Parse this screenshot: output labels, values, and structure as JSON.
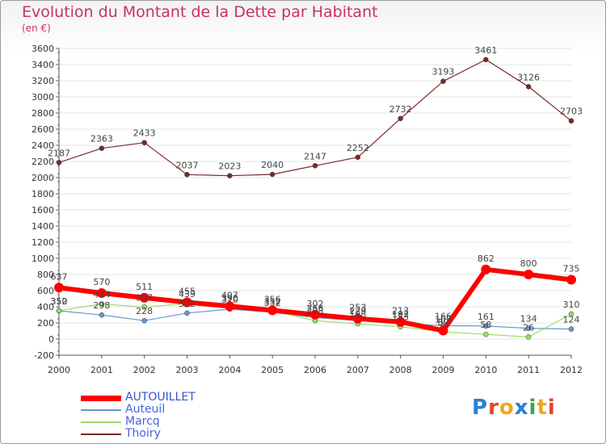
{
  "title": "Evolution du Montant de la Dette par Habitant",
  "subtitle": "(en €)",
  "logo_text": "Proxiti",
  "chart_data": {
    "type": "line",
    "title": "Evolution du Montant de la Dette par Habitant",
    "ylabel": "(en €)",
    "xlabel": "",
    "x": [
      "2000",
      "2001",
      "2002",
      "2003",
      "2004",
      "2005",
      "2006",
      "2007",
      "2008",
      "2009",
      "2010",
      "2011",
      "2012"
    ],
    "ylim": [
      -200,
      3600
    ],
    "yticks": [
      -200,
      0,
      200,
      400,
      600,
      800,
      1000,
      1200,
      1400,
      1600,
      1800,
      2000,
      2200,
      2400,
      2600,
      2800,
      3000,
      3200,
      3400,
      3600
    ],
    "legend_position": "bottom-left",
    "series": [
      {
        "name": "AUTOUILLET",
        "color": "#ff0000",
        "values": [
          637,
          570,
          511,
          455,
          407,
          356,
          302,
          253,
          213,
          105,
          862,
          800,
          735
        ]
      },
      {
        "name": "Auteuil",
        "color": "#6699cc",
        "values": [
          350,
          298,
          228,
          322,
          370,
          332,
          266,
          229,
          192,
          166,
          161,
          134,
          124
        ]
      },
      {
        "name": "Marcq",
        "color": "#99dd66",
        "values": [
          352,
          434,
          397,
          439,
          390,
          352,
          228,
          188,
          153,
          89,
          58,
          26,
          310
        ]
      },
      {
        "name": "Thoiry",
        "color": "#7a2a2a",
        "values": [
          2187,
          2363,
          2433,
          2037,
          2023,
          2040,
          2147,
          2252,
          2732,
          3193,
          3461,
          3126,
          2703
        ]
      }
    ]
  }
}
